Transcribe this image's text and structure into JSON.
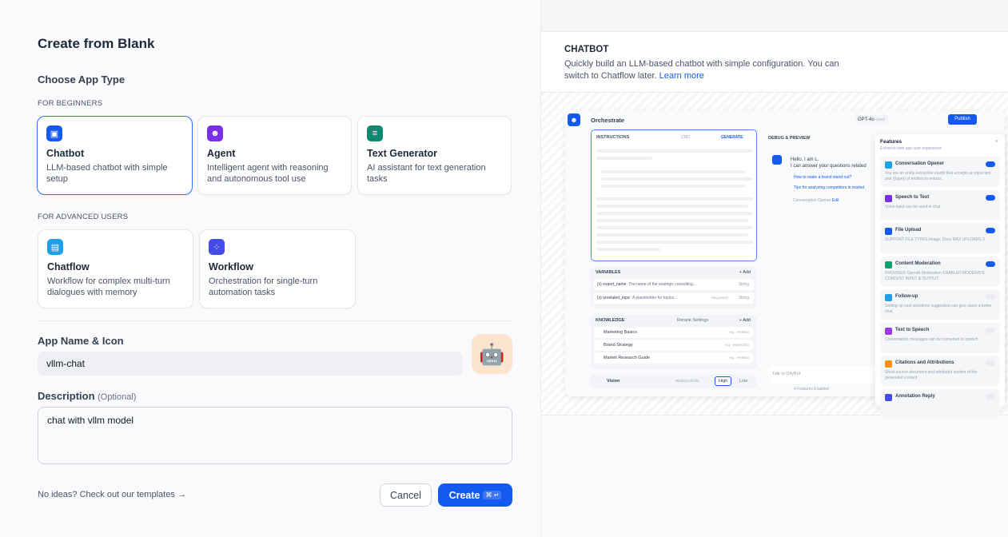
{
  "title": "Create from Blank",
  "choose_label": "Choose App Type",
  "beginners_label": "FOR BEGINNERS",
  "advanced_label": "FOR ADVANCED USERS",
  "app_types": [
    {
      "name": "Chatbot",
      "desc": "LLM-based chatbot with simple setup",
      "color": "#155aef",
      "icon": "chatbot-icon",
      "selected": true
    },
    {
      "name": "Agent",
      "desc": "Intelligent agent with reasoning and autonomous tool use",
      "color": "#7a2ee6",
      "icon": "agent-icon"
    },
    {
      "name": "Text Generator",
      "desc": "AI assistant for text generation tasks",
      "color": "#0e8a70",
      "icon": "text-generator-icon"
    },
    {
      "name": "Chatflow",
      "desc": "Workflow for complex multi-turn dialogues with memory",
      "color": "#1ea0e8",
      "icon": "chatflow-icon"
    },
    {
      "name": "Workflow",
      "desc": "Orchestration for single-turn automation tasks",
      "color": "#444ce7",
      "icon": "workflow-icon"
    }
  ],
  "app_name_label": "App Name & Icon",
  "app_name_value": "vllm-chat",
  "app_icon": "🤖",
  "description_label": "Description",
  "description_optional": "(Optional)",
  "description_value": "chat with vllm model",
  "templates_link": "No ideas? Check out our templates →",
  "cancel_label": "Cancel",
  "create_label": "Create",
  "create_shortcut": "⌘ ↵",
  "preview": {
    "heading": "CHATBOT",
    "desc": "Quickly build an LLM-based chatbot with simple configuration. You can switch to Chatflow later.",
    "learn_more": "Learn more",
    "orchestrate": "Orchestrate",
    "model": "GPT-4o",
    "model_tag": "CHAT",
    "publish": "Publish",
    "instructions": "INSTRUCTIONS",
    "instructions_count": "2182",
    "generate": "GENERATE",
    "variables": "VARIABLES",
    "add": "+ Add",
    "vars": [
      {
        "key": "{x} expert_name",
        "desc": "The name of the strategic consulting...",
        "type": "String"
      },
      {
        "key": "{x} unrelated_topic",
        "desc": "A placeholder for topics...",
        "req": "REQUIRED",
        "type": "String"
      }
    ],
    "knowledge": "KNOWLEDGE",
    "rerank": "Rerank Settings",
    "kb": [
      {
        "name": "Marketing Basics",
        "tag": "HQ · HYBRID"
      },
      {
        "name": "Brand Strategy",
        "tag": "HQ · INVERTED"
      },
      {
        "name": "Market Research Guide",
        "tag": "HQ · HYBRID"
      }
    ],
    "vision": "Vision",
    "resolution": "RESOLUTION",
    "high": "High",
    "low": "Low",
    "debug": "DEBUG & PREVIEW",
    "greet1": "Hello, I am L.",
    "greet2": "I can answer your questions related",
    "q1": "How to make a brand stand out?",
    "q2": "Tips for analyzing competitors in market",
    "opener": "Conversation Opener",
    "edit": "Edit",
    "talk": "Talk to DifyBot",
    "enabled": "4 Features Enabled",
    "features_title": "Features",
    "features_sub": "Enhance web app user experience",
    "features": [
      {
        "name": "Conversation Opener",
        "desc": "You are an entity extraction model that accepts an input text and {{type}} of entities to extract.",
        "on": true,
        "color": "#1ea0e8"
      },
      {
        "name": "Speech to Text",
        "desc": "Voice input can be used in chat.",
        "on": true,
        "color": "#7a2ee6"
      },
      {
        "name": "File Upload",
        "desc": "SUPPORT FILE TYPES Image, Docs   MAX UPLOADS 3",
        "on": true,
        "color": "#155aef"
      },
      {
        "name": "Content Moderation",
        "desc": "PROVIDER OpenAI Moderation   ENABLED MODERATE CONTENT INPUT & OUTPUT",
        "on": true,
        "color": "#0e9f6e"
      },
      {
        "name": "Follow-up",
        "desc": "Setting up next questions suggestion can give users a better chat.",
        "on": false,
        "color": "#1ea0e8"
      },
      {
        "name": "Text to Speech",
        "desc": "Conversation messages can be converted to speech.",
        "on": false,
        "color": "#9b3ae6"
      },
      {
        "name": "Citations and Attributions",
        "desc": "Show source document and attributed section of the generated content.",
        "on": false,
        "color": "#f79009"
      },
      {
        "name": "Annotation Reply",
        "desc": "",
        "on": false,
        "color": "#444ce7"
      }
    ]
  }
}
